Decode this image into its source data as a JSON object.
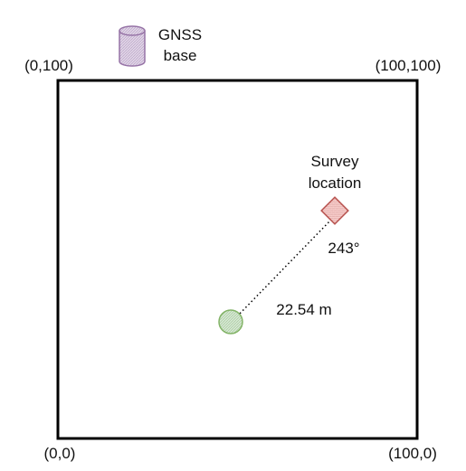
{
  "corners": {
    "top_left": "(0,100)",
    "top_right": "(100,100)",
    "bottom_left": "(0,0)",
    "bottom_right": "(100,0)"
  },
  "gnss_base": {
    "label_line1": "GNSS",
    "label_line2": "base",
    "icon": "cylinder-icon",
    "fill": "#e1d5e7",
    "stroke": "#9673a6"
  },
  "survey_location": {
    "label_line1": "Survey",
    "label_line2": "location",
    "icon": "diamond-icon",
    "fill": "#f8cecc",
    "stroke": "#b85450",
    "bearing": "243°"
  },
  "current_position": {
    "icon": "circle-icon",
    "fill": "#d5e8d4",
    "stroke": "#82b366",
    "distance": "22.54 m"
  }
}
